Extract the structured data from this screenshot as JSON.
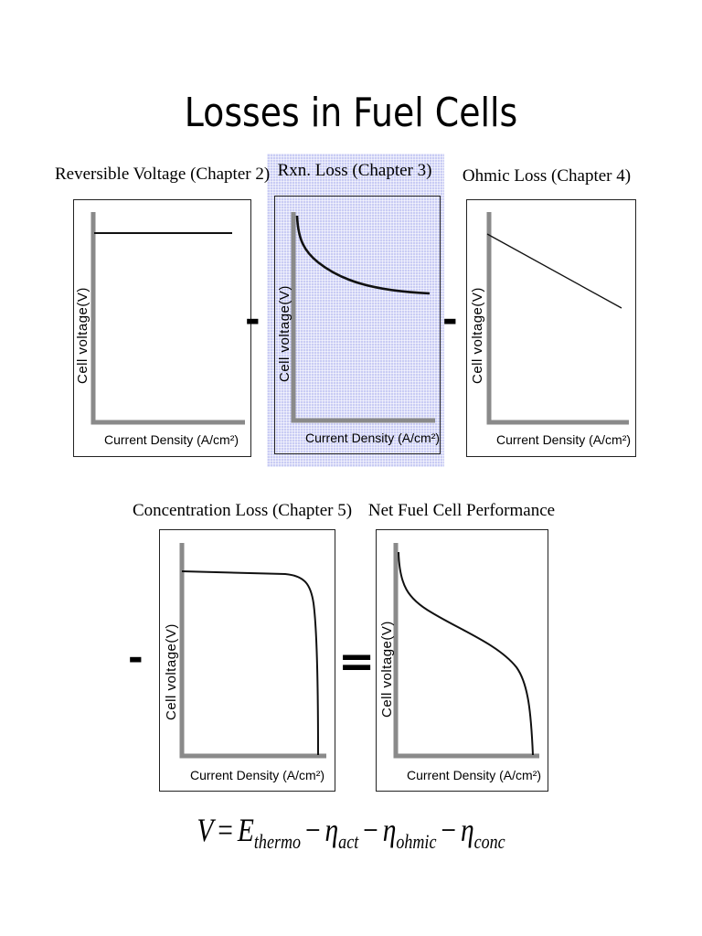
{
  "title": "Losses in Fuel Cells",
  "panels": [
    {
      "id": "reversible",
      "title": "Reversible Voltage (Chapter 2)",
      "ylabel": "Cell voltage(V)",
      "xlabel": "Current Density (A/cm²)",
      "highlighted": false
    },
    {
      "id": "rxn",
      "title": "Rxn. Loss (Chapter 3)",
      "ylabel": "Cell voltage(V)",
      "xlabel": "Current Density (A/cm²)",
      "highlighted": true
    },
    {
      "id": "ohmic",
      "title": "Ohmic Loss (Chapter 4)",
      "ylabel": "Cell voltage(V)",
      "xlabel": "Current Density (A/cm²)",
      "highlighted": false
    },
    {
      "id": "concentration",
      "title": "Concentration Loss (Chapter 5)",
      "ylabel": "Cell voltage(V)",
      "xlabel": "Current Density (A/cm²)",
      "highlighted": false
    },
    {
      "id": "net",
      "title": "Net Fuel Cell Performance",
      "ylabel": "Cell voltage(V)",
      "xlabel": "Current Density (A/cm²)",
      "highlighted": false
    }
  ],
  "operators": {
    "minus": "-",
    "equals": "="
  },
  "equation": {
    "lhs": "V",
    "eq": "=",
    "minus": "−",
    "E": "E",
    "E_sub": "thermo",
    "eta": "η",
    "act": "act",
    "ohmic": "ohmic",
    "conc": "conc"
  },
  "colors": {
    "highlight": "#c9ccf4",
    "axis": "#8a8a8a",
    "curve": "#111111"
  }
}
